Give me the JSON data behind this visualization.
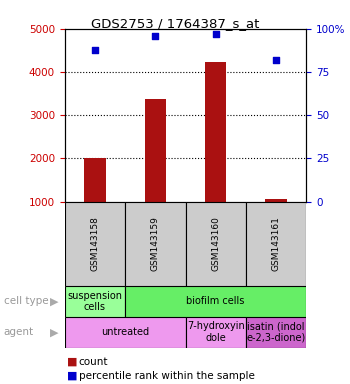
{
  "title": "GDS2753 / 1764387_s_at",
  "samples": [
    "GSM143158",
    "GSM143159",
    "GSM143160",
    "GSM143161"
  ],
  "bar_values": [
    2000,
    3380,
    4220,
    1050
  ],
  "scatter_values": [
    88,
    96,
    97,
    82
  ],
  "bar_color": "#aa1111",
  "scatter_color": "#0000cc",
  "ylim_left": [
    1000,
    5000
  ],
  "ylim_right": [
    0,
    100
  ],
  "yticks_left": [
    1000,
    2000,
    3000,
    4000,
    5000
  ],
  "yticks_right": [
    0,
    25,
    50,
    75,
    100
  ],
  "ytick_labels_right": [
    "0",
    "25",
    "50",
    "75",
    "100%"
  ],
  "cell_type_row": {
    "label": "cell type",
    "segments": [
      {
        "text": "suspension\ncells",
        "span": 1,
        "color": "#99ff99"
      },
      {
        "text": "biofilm cells",
        "span": 3,
        "color": "#66ee66"
      }
    ]
  },
  "agent_row": {
    "label": "agent",
    "segments": [
      {
        "text": "untreated",
        "span": 2,
        "color": "#ee99ee"
      },
      {
        "text": "7-hydroxyin\ndole",
        "span": 1,
        "color": "#ee99ee"
      },
      {
        "text": "isatin (indol\ne-2,3-dione)",
        "span": 1,
        "color": "#cc66cc"
      }
    ]
  },
  "legend_items": [
    {
      "color": "#aa1111",
      "label": "count"
    },
    {
      "color": "#0000cc",
      "label": "percentile rank within the sample"
    }
  ],
  "background_color": "#ffffff",
  "bar_width": 0.35
}
